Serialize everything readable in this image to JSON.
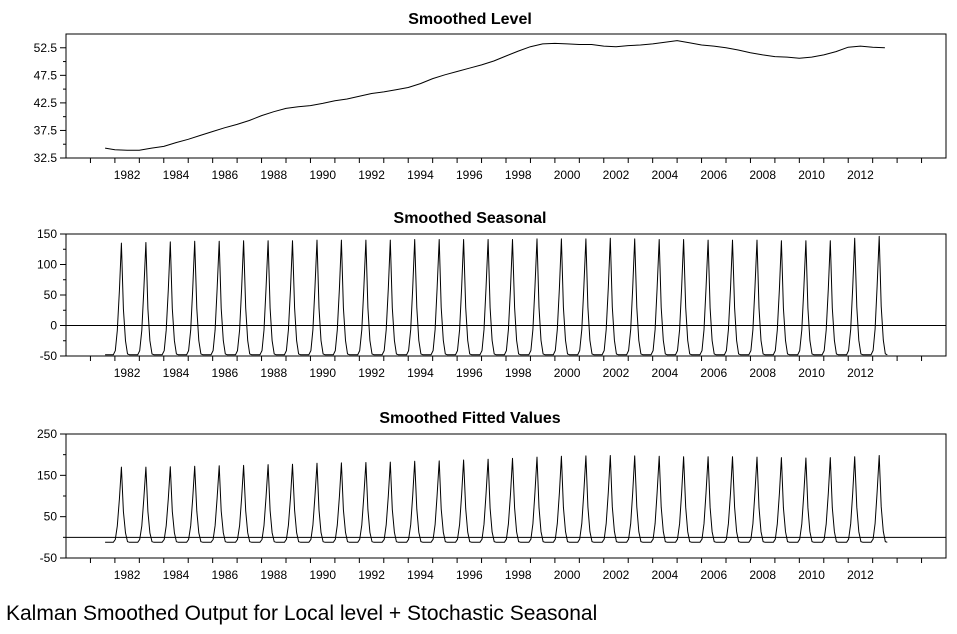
{
  "caption": "Kalman Smoothed Output for Local level + Stochastic Seasonal",
  "chart_data": [
    {
      "type": "line",
      "title": "Smoothed Level",
      "xlabel": "",
      "ylabel": "",
      "xlim": [
        1980.0,
        2016.0
      ],
      "ylim": [
        32.5,
        55.0
      ],
      "yticks": [
        32.5,
        37.5,
        42.5,
        47.5,
        52.5
      ],
      "ytick_labels": [
        "32.5",
        "37.5",
        "42.5",
        "47.5",
        "52.5"
      ],
      "xticks": [
        1982,
        1984,
        1986,
        1988,
        1990,
        1992,
        1994,
        1996,
        1998,
        2000,
        2002,
        2004,
        2006,
        2008,
        2010,
        2012
      ],
      "xtick_labels": [
        "1982",
        "1984",
        "1986",
        "1988",
        "1990",
        "1992",
        "1994",
        "1996",
        "1998",
        "2000",
        "2002",
        "2004",
        "2006",
        "2008",
        "2010",
        "2012"
      ],
      "series": [
        {
          "name": "Smoothed Level",
          "x": [
            1981.6,
            1982.0,
            1982.5,
            1983.0,
            1983.5,
            1984.0,
            1984.5,
            1985.0,
            1985.5,
            1986.0,
            1986.5,
            1987.0,
            1987.5,
            1988.0,
            1988.5,
            1989.0,
            1989.5,
            1990.0,
            1990.5,
            1991.0,
            1991.5,
            1992.0,
            1992.5,
            1993.0,
            1993.5,
            1994.0,
            1994.5,
            1995.0,
            1995.5,
            1996.0,
            1996.5,
            1997.0,
            1997.5,
            1998.0,
            1998.5,
            1999.0,
            1999.5,
            2000.0,
            2000.5,
            2001.0,
            2001.5,
            2002.0,
            2002.5,
            2003.0,
            2003.5,
            2004.0,
            2004.5,
            2005.0,
            2005.5,
            2006.0,
            2006.5,
            2007.0,
            2007.5,
            2008.0,
            2008.5,
            2009.0,
            2009.5,
            2010.0,
            2010.5,
            2011.0,
            2011.5,
            2012.0,
            2012.5,
            2013.0,
            2013.5
          ],
          "values": [
            34.3,
            34.0,
            33.9,
            33.9,
            34.3,
            34.6,
            35.3,
            35.9,
            36.6,
            37.3,
            38.0,
            38.6,
            39.3,
            40.2,
            40.9,
            41.5,
            41.8,
            42.0,
            42.4,
            42.9,
            43.2,
            43.7,
            44.2,
            44.5,
            44.9,
            45.3,
            46.0,
            46.9,
            47.6,
            48.2,
            48.8,
            49.4,
            50.1,
            51.0,
            51.9,
            52.7,
            53.2,
            53.3,
            53.2,
            53.1,
            53.1,
            52.8,
            52.7,
            52.9,
            53.0,
            53.2,
            53.5,
            53.8,
            53.4,
            53.0,
            52.8,
            52.5,
            52.1,
            51.6,
            51.2,
            50.9,
            50.8,
            50.6,
            50.8,
            51.2,
            51.8,
            52.6,
            52.8,
            52.6,
            52.5
          ]
        }
      ]
    },
    {
      "type": "line",
      "title": "Smoothed Seasonal",
      "xlabel": "",
      "ylabel": "",
      "xlim": [
        1980.0,
        2016.0
      ],
      "ylim": [
        -50,
        150
      ],
      "yticks": [
        -50,
        0,
        50,
        100,
        150
      ],
      "ytick_labels": [
        "-50",
        "0",
        "50",
        "100",
        "150"
      ],
      "zero_line": 0,
      "xticks": [
        1982,
        1984,
        1986,
        1988,
        1990,
        1992,
        1994,
        1996,
        1998,
        2000,
        2002,
        2004,
        2006,
        2008,
        2010,
        2012
      ],
      "xtick_labels": [
        "1982",
        "1984",
        "1986",
        "1988",
        "1990",
        "1992",
        "1994",
        "1996",
        "1998",
        "2000",
        "2002",
        "2004",
        "2006",
        "2008",
        "2010",
        "2012"
      ],
      "series": [
        {
          "name": "Smoothed Seasonal",
          "pattern": "annual spike",
          "start_year": 1981.6,
          "end_year": 2013.6,
          "trough": -48,
          "peak_years": [
            1982.25,
            1983.25,
            1984.25,
            1985.25,
            1986.25,
            1987.25,
            1988.25,
            1989.25,
            1990.25,
            1991.25,
            1992.25,
            1993.25,
            1994.25,
            1995.25,
            1996.25,
            1997.25,
            1998.25,
            1999.25,
            2000.25,
            2001.25,
            2002.25,
            2003.25,
            2004.25,
            2005.25,
            2006.25,
            2007.25,
            2008.25,
            2009.25,
            2010.25,
            2011.25,
            2012.25,
            2013.25
          ],
          "peak_values": [
            135,
            136,
            137,
            138,
            138,
            139,
            139,
            139,
            140,
            140,
            140,
            140,
            141,
            141,
            141,
            141,
            141,
            142,
            142,
            142,
            143,
            142,
            141,
            141,
            140,
            140,
            140,
            139,
            139,
            139,
            143,
            146
          ]
        }
      ]
    },
    {
      "type": "line",
      "title": "Smoothed Fitted Values",
      "xlabel": "",
      "ylabel": "",
      "xlim": [
        1980.0,
        2016.0
      ],
      "ylim": [
        -50,
        250
      ],
      "yticks": [
        -50,
        50,
        150,
        250
      ],
      "ytick_labels": [
        "-50",
        "50",
        "150",
        "250"
      ],
      "zero_line": 0,
      "xticks": [
        1982,
        1984,
        1986,
        1988,
        1990,
        1992,
        1994,
        1996,
        1998,
        2000,
        2002,
        2004,
        2006,
        2008,
        2010,
        2012
      ],
      "xtick_labels": [
        "1982",
        "1984",
        "1986",
        "1988",
        "1990",
        "1992",
        "1994",
        "1996",
        "1998",
        "2000",
        "2002",
        "2004",
        "2006",
        "2008",
        "2010",
        "2012"
      ],
      "series": [
        {
          "name": "Smoothed Fitted Values",
          "pattern": "annual spike",
          "start_year": 1981.6,
          "end_year": 2013.6,
          "trough": -12,
          "peak_years": [
            1982.25,
            1983.25,
            1984.25,
            1985.25,
            1986.25,
            1987.25,
            1988.25,
            1989.25,
            1990.25,
            1991.25,
            1992.25,
            1993.25,
            1994.25,
            1995.25,
            1996.25,
            1997.25,
            1998.25,
            1999.25,
            2000.25,
            2001.25,
            2002.25,
            2003.25,
            2004.25,
            2005.25,
            2006.25,
            2007.25,
            2008.25,
            2009.25,
            2010.25,
            2011.25,
            2012.25,
            2013.25
          ],
          "peak_values": [
            170,
            170,
            171,
            172,
            173,
            174,
            176,
            177,
            179,
            180,
            181,
            182,
            184,
            185,
            187,
            189,
            191,
            194,
            196,
            197,
            198,
            197,
            196,
            195,
            195,
            195,
            194,
            193,
            192,
            193,
            195,
            198
          ]
        }
      ]
    }
  ]
}
